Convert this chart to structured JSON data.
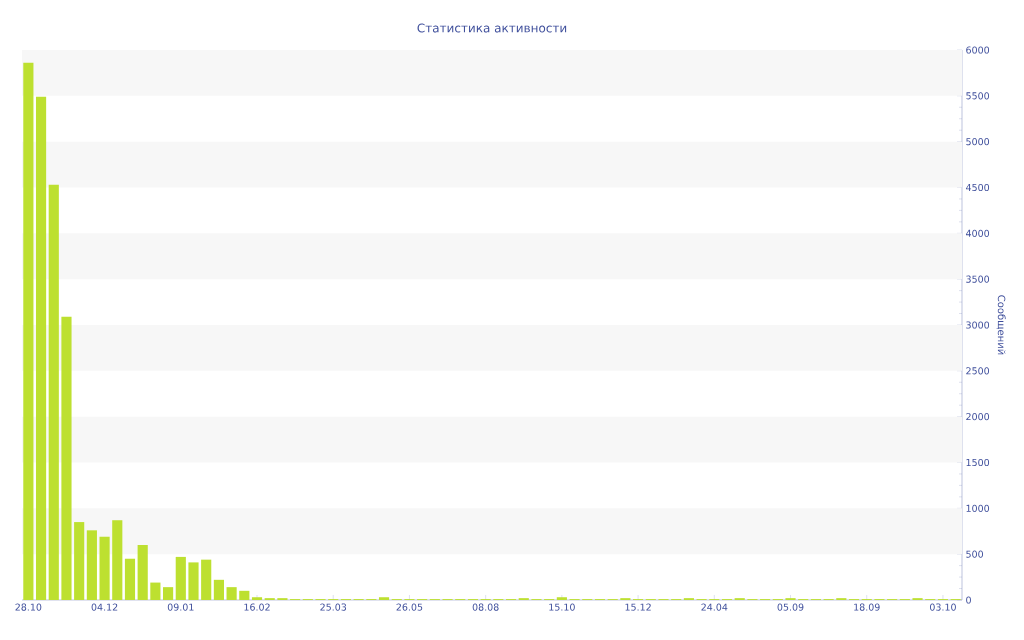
{
  "chart_data": {
    "type": "bar",
    "title": "Статистика активности",
    "ylabel": "Сообщений",
    "categories": [
      "28.10",
      null,
      null,
      null,
      null,
      null,
      "04.12",
      null,
      null,
      null,
      null,
      null,
      "09.01",
      null,
      null,
      null,
      null,
      null,
      "16.02",
      null,
      null,
      null,
      null,
      null,
      "25.03",
      null,
      null,
      null,
      null,
      null,
      "26.05",
      null,
      null,
      null,
      null,
      null,
      "08.08",
      null,
      null,
      null,
      null,
      null,
      "15.10",
      null,
      null,
      null,
      null,
      null,
      "15.12",
      null,
      null,
      null,
      null,
      null,
      "24.04",
      null,
      null,
      null,
      null,
      null,
      "05.09",
      null,
      null,
      null,
      null,
      null,
      "18.09",
      null,
      null,
      null,
      null,
      null,
      "03.10",
      null
    ],
    "values": [
      5860,
      5490,
      4530,
      3090,
      850,
      760,
      690,
      870,
      450,
      600,
      190,
      140,
      470,
      410,
      440,
      220,
      140,
      100,
      30,
      20,
      20,
      10,
      10,
      10,
      10,
      10,
      10,
      10,
      30,
      10,
      10,
      10,
      10,
      10,
      10,
      10,
      10,
      10,
      10,
      20,
      10,
      10,
      30,
      10,
      10,
      10,
      10,
      20,
      10,
      10,
      10,
      10,
      20,
      10,
      10,
      10,
      20,
      10,
      10,
      10,
      20,
      10,
      10,
      10,
      20,
      10,
      10,
      10,
      10,
      10,
      20,
      10,
      10,
      10
    ],
    "color": "#bde030",
    "ylim": [
      0,
      6000
    ],
    "yticks": [
      0,
      500,
      1000,
      1500,
      2000,
      2500,
      3000,
      3500,
      4000,
      4500,
      5000,
      5500,
      6000
    ]
  }
}
